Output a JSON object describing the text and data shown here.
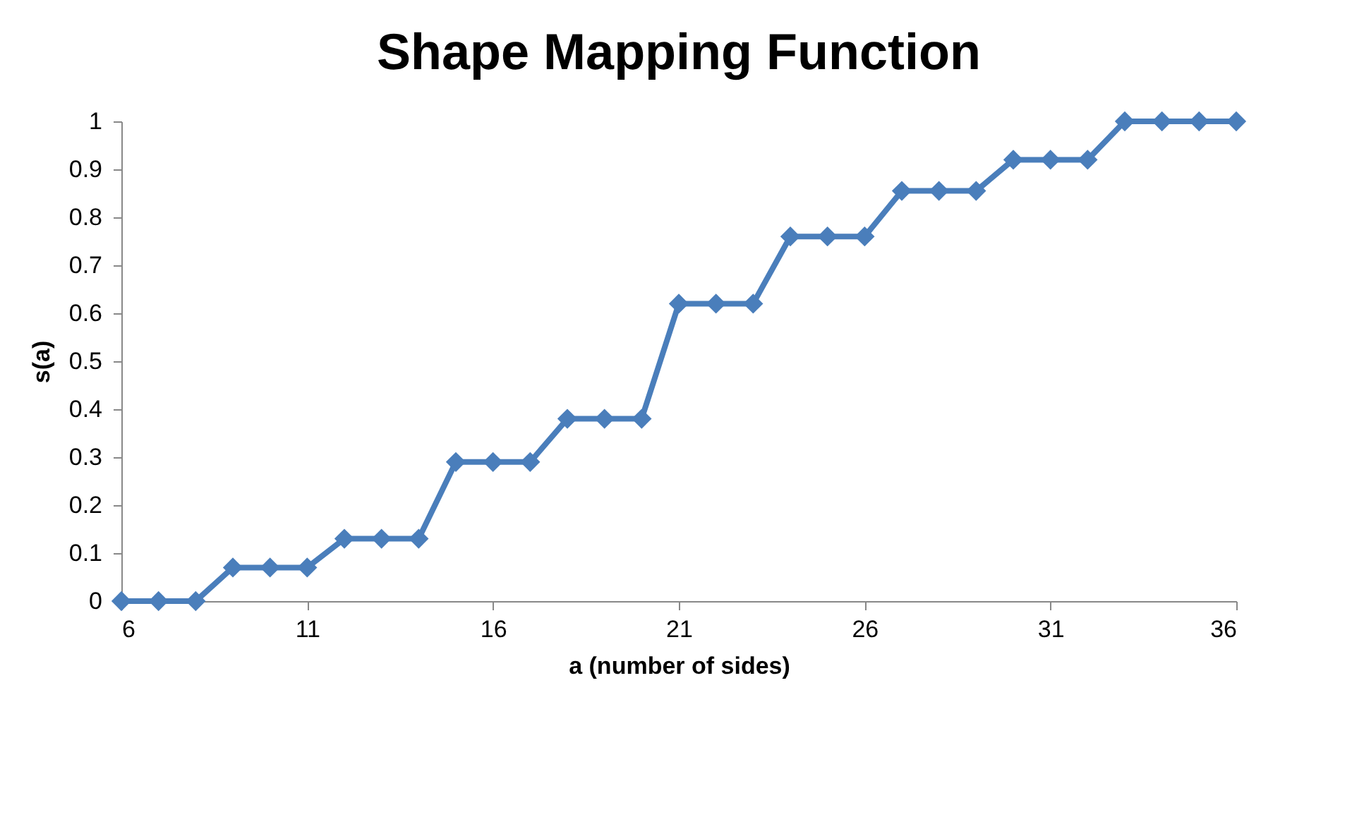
{
  "chart_data": {
    "type": "line",
    "title": "Shape Mapping Function",
    "xlabel": "a (number of sides)",
    "ylabel": "s(a)",
    "x": [
      6,
      7,
      8,
      9,
      10,
      11,
      12,
      13,
      14,
      15,
      16,
      17,
      18,
      19,
      20,
      21,
      22,
      23,
      24,
      25,
      26,
      27,
      28,
      29,
      30,
      31,
      32,
      33,
      34,
      35,
      36
    ],
    "series": [
      {
        "color": "#4a7ebb",
        "values": [
          0,
          0,
          0,
          0.07,
          0.07,
          0.07,
          0.13,
          0.13,
          0.13,
          0.29,
          0.29,
          0.29,
          0.38,
          0.38,
          0.38,
          0.62,
          0.62,
          0.62,
          0.76,
          0.76,
          0.76,
          0.855,
          0.855,
          0.855,
          0.92,
          0.92,
          0.92,
          1,
          1,
          1,
          1
        ]
      }
    ],
    "xlim": [
      6,
      36
    ],
    "xticks": [
      6,
      11,
      16,
      21,
      26,
      31,
      36
    ],
    "ylim": [
      0,
      1
    ],
    "yticks": [
      0,
      0.1,
      0.2,
      0.3,
      0.4,
      0.5,
      0.6,
      0.7,
      0.8,
      0.9,
      1
    ],
    "grid": false,
    "legend": false,
    "marker": "diamond",
    "line_style": "solid"
  }
}
